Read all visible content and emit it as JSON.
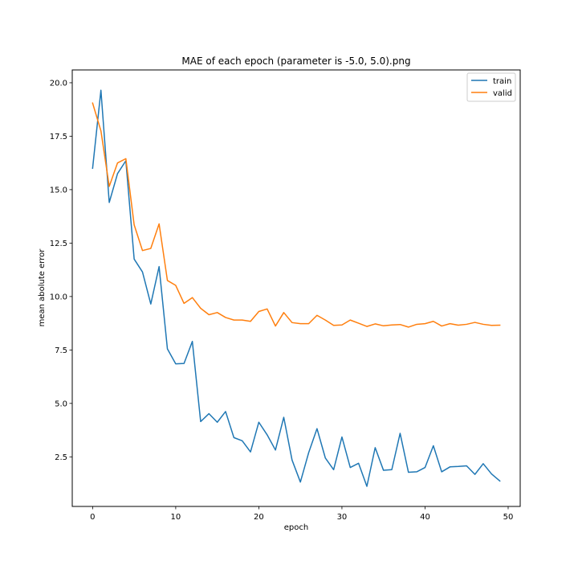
{
  "chart_data": {
    "type": "line",
    "title": "MAE of each epoch (parameter is -5.0, 5.0).png",
    "xlabel": "epoch",
    "ylabel": "mean abolute error",
    "xlim": [
      -2.45,
      51.45
    ],
    "ylim": [
      0.18,
      20.6
    ],
    "x_ticks": [
      0,
      10,
      20,
      30,
      40,
      50
    ],
    "x_tick_labels": [
      "0",
      "10",
      "20",
      "30",
      "40",
      "50"
    ],
    "y_ticks": [
      2.5,
      5.0,
      7.5,
      10.0,
      12.5,
      15.0,
      17.5,
      20.0
    ],
    "y_tick_labels": [
      "2.5",
      "5.0",
      "7.5",
      "10.0",
      "12.5",
      "15.0",
      "17.5",
      "20.0"
    ],
    "grid": false,
    "legend_position": "top-right",
    "x": [
      0,
      1,
      2,
      3,
      4,
      5,
      6,
      7,
      8,
      9,
      10,
      11,
      12,
      13,
      14,
      15,
      16,
      17,
      18,
      19,
      20,
      21,
      22,
      23,
      24,
      25,
      26,
      27,
      28,
      29,
      30,
      31,
      32,
      33,
      34,
      35,
      36,
      37,
      38,
      39,
      40,
      41,
      42,
      43,
      44,
      45,
      46,
      47,
      48,
      49
    ],
    "series": [
      {
        "name": "train",
        "color": "#1f77b4",
        "values": [
          16.0,
          19.65,
          14.4,
          15.75,
          16.35,
          11.75,
          11.15,
          9.65,
          11.4,
          7.55,
          6.85,
          6.87,
          7.9,
          4.15,
          4.52,
          4.12,
          4.62,
          3.4,
          3.25,
          2.73,
          4.12,
          3.53,
          2.82,
          4.35,
          2.35,
          1.32,
          2.7,
          3.82,
          2.45,
          1.9,
          3.43,
          2.0,
          2.2,
          1.12,
          2.93,
          1.87,
          1.9,
          3.6,
          1.78,
          1.8,
          2.0,
          3.02,
          1.8,
          2.03,
          2.05,
          2.08,
          1.68,
          2.18,
          1.7,
          1.37
        ]
      },
      {
        "name": "valid",
        "color": "#ff7f0e",
        "values": [
          19.05,
          17.75,
          15.15,
          16.25,
          16.45,
          13.35,
          12.15,
          12.25,
          13.4,
          10.75,
          10.52,
          9.68,
          9.95,
          9.45,
          9.15,
          9.25,
          9.02,
          8.9,
          8.9,
          8.84,
          9.3,
          9.42,
          8.62,
          9.25,
          8.78,
          8.73,
          8.73,
          9.12,
          8.9,
          8.65,
          8.67,
          8.9,
          8.75,
          8.6,
          8.72,
          8.63,
          8.67,
          8.69,
          8.57,
          8.7,
          8.73,
          8.84,
          8.62,
          8.73,
          8.66,
          8.7,
          8.79,
          8.7,
          8.65,
          8.66
        ]
      }
    ]
  }
}
